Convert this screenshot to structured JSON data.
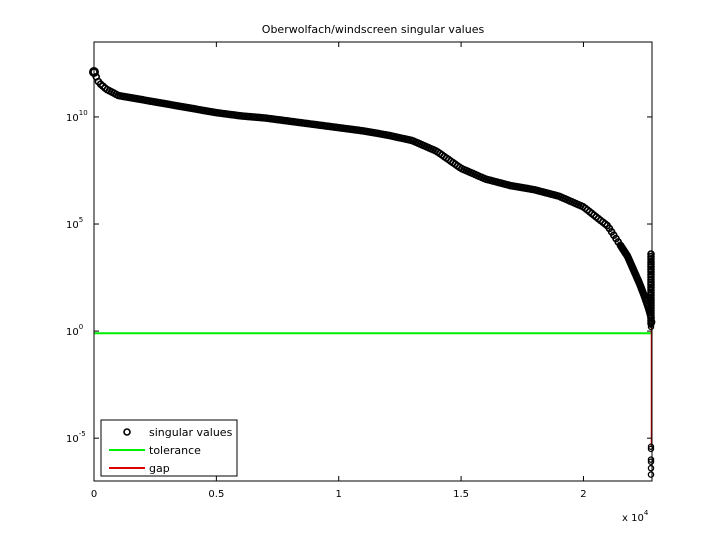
{
  "chart_data": {
    "type": "scatter",
    "title": "Oberwolfach/windscreen singular values",
    "xlabel": "",
    "ylabel": "",
    "x_multiplier_label": {
      "base": "x 10",
      "exponent": "4"
    },
    "xlim": [
      0,
      22801
    ],
    "ylim_log10": [
      -7,
      13.5
    ],
    "yscale": "log",
    "grid": false,
    "legend_position": "bottom-left",
    "x_ticks": [
      {
        "value": 0,
        "label": "0"
      },
      {
        "value": 5000,
        "label": "0.5"
      },
      {
        "value": 10000,
        "label": "1"
      },
      {
        "value": 15000,
        "label": "1.5"
      },
      {
        "value": 20000,
        "label": "2"
      }
    ],
    "y_ticks": [
      {
        "log10": 10,
        "base": "10",
        "exponent": "10"
      },
      {
        "log10": 5,
        "base": "10",
        "exponent": "5"
      },
      {
        "log10": 0,
        "base": "10",
        "exponent": "0"
      },
      {
        "log10": -5,
        "base": "10",
        "exponent": "-5"
      }
    ],
    "series": [
      {
        "name": "singular values",
        "style": "markers",
        "marker": "circle",
        "color": "#000000",
        "curve_log10": [
          [
            0,
            12.1
          ],
          [
            200,
            11.6
          ],
          [
            500,
            11.3
          ],
          [
            1000,
            11.0
          ],
          [
            2000,
            10.8
          ],
          [
            3000,
            10.6
          ],
          [
            4000,
            10.4
          ],
          [
            5000,
            10.2
          ],
          [
            6000,
            10.05
          ],
          [
            7000,
            9.95
          ],
          [
            8000,
            9.8
          ],
          [
            9000,
            9.65
          ],
          [
            10000,
            9.5
          ],
          [
            11000,
            9.35
          ],
          [
            12000,
            9.15
          ],
          [
            13000,
            8.9
          ],
          [
            14000,
            8.4
          ],
          [
            15000,
            7.6
          ],
          [
            16000,
            7.1
          ],
          [
            17000,
            6.8
          ],
          [
            18000,
            6.6
          ],
          [
            19000,
            6.3
          ],
          [
            20000,
            5.8
          ],
          [
            21000,
            4.9
          ],
          [
            21800,
            3.5
          ],
          [
            22300,
            2.2
          ],
          [
            22500,
            1.6
          ],
          [
            22650,
            1.1
          ],
          [
            22750,
            0.7
          ],
          [
            22801,
            0.3
          ]
        ],
        "tail_points": [
          {
            "x": 22801,
            "log10": 3.4
          },
          {
            "x": 22801,
            "log10": 3.1
          },
          {
            "x": 22801,
            "log10": 2.8
          },
          {
            "x": 22801,
            "log10": 2.4
          },
          {
            "x": 22801,
            "log10": 2.0
          },
          {
            "x": 22801,
            "log10": 1.9
          },
          {
            "x": 22801,
            "log10": 1.5
          },
          {
            "x": 22801,
            "log10": 1.4
          },
          {
            "x": 22801,
            "log10": 0.3
          },
          {
            "x": 22801,
            "log10": 0.2
          },
          {
            "x": 22801,
            "log10": -5.4
          },
          {
            "x": 22801,
            "log10": -5.5
          },
          {
            "x": 22801,
            "log10": -6.0
          },
          {
            "x": 22801,
            "log10": -6.1
          },
          {
            "x": 22801,
            "log10": -6.4
          },
          {
            "x": 22801,
            "log10": -6.7
          }
        ]
      },
      {
        "name": "tolerance",
        "style": "line",
        "color": "#00ee00",
        "y_log10": -0.1
      },
      {
        "name": "gap",
        "style": "line",
        "color": "#dd0000",
        "x": 22801,
        "from_log10": 0.3,
        "to_log10": -5.4
      }
    ]
  }
}
